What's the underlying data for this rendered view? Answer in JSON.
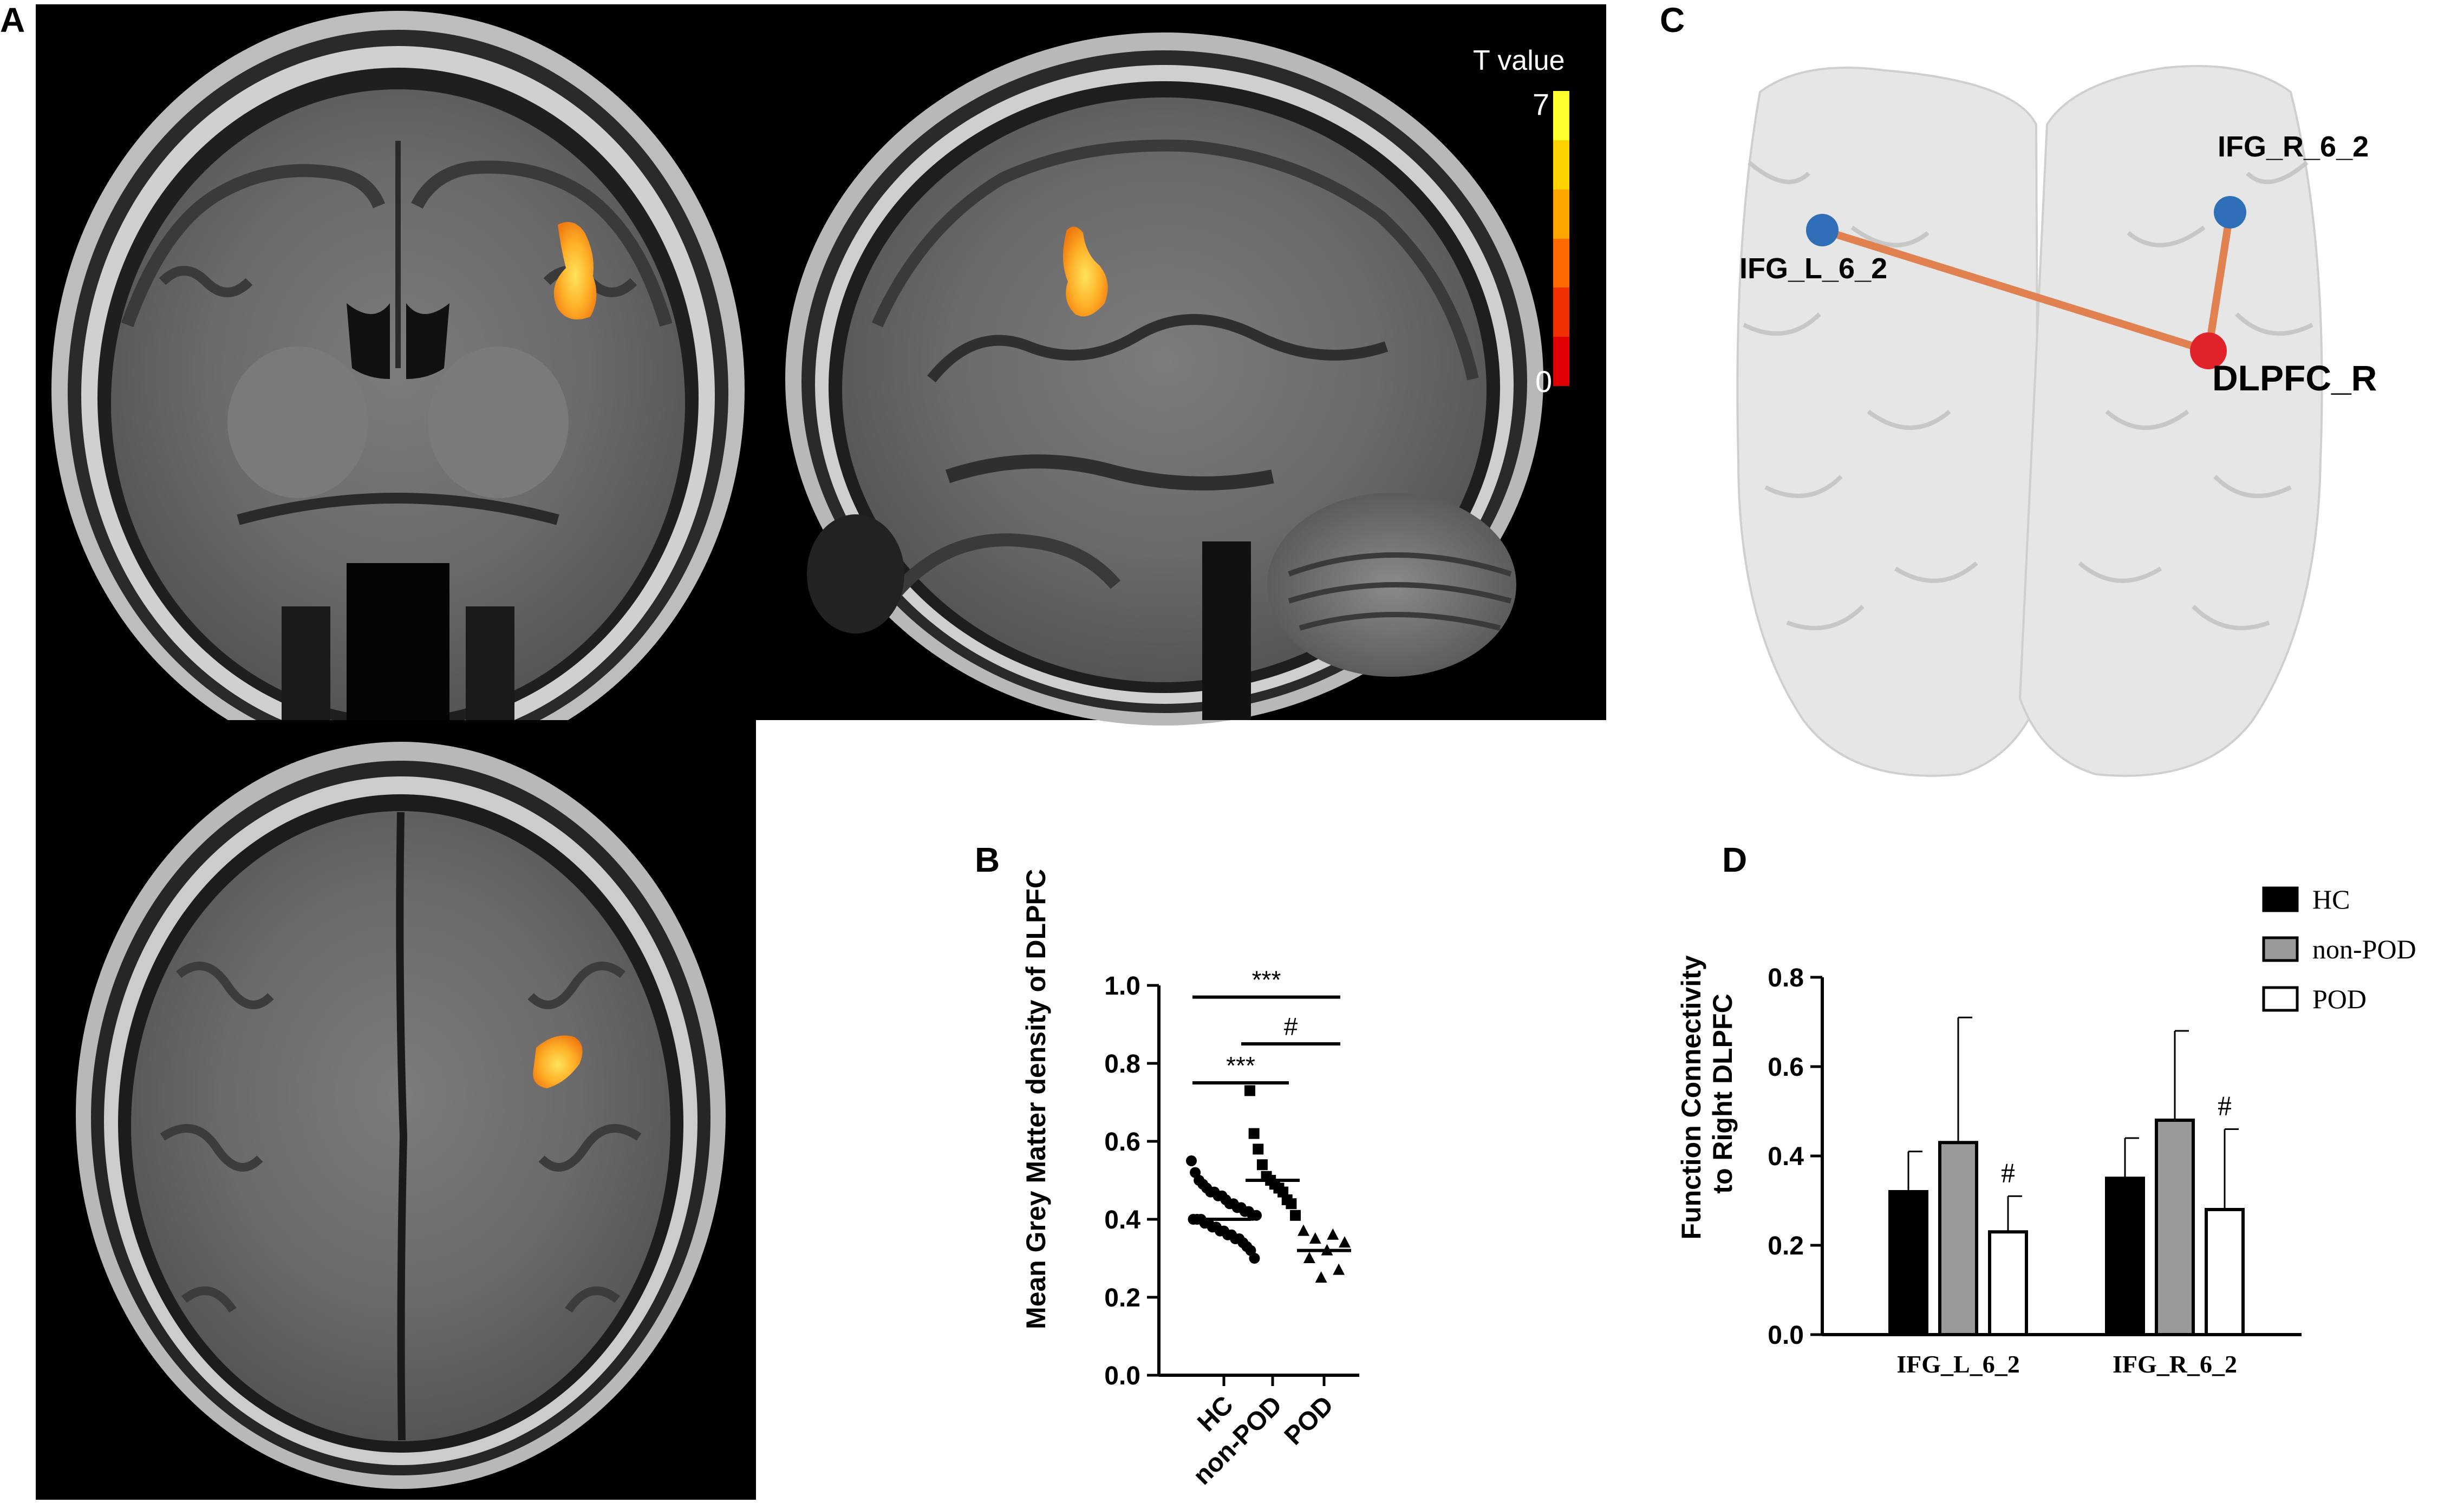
{
  "panels": {
    "a": {
      "letter": "A"
    },
    "b": {
      "letter": "B"
    },
    "c": {
      "letter": "C"
    },
    "d": {
      "letter": "D"
    }
  },
  "colorbar": {
    "title": "T value",
    "max_label": "7",
    "min_label": "0",
    "colors": [
      "#e00000",
      "#f03000",
      "#ff6a00",
      "#ffa500",
      "#ffd200",
      "#ffff30"
    ]
  },
  "connectivity": {
    "nodes": [
      {
        "label": "IFG_L_6_2",
        "color": "#2e6fb7"
      },
      {
        "label": "IFG_R_6_2",
        "color": "#2e6fb7"
      },
      {
        "label": "DLPFC_R",
        "color": "#e0232b"
      }
    ],
    "edge_color": "#e0814f"
  },
  "chart_data": [
    {
      "type": "scatter",
      "panel": "B",
      "title": "",
      "xlabel": "",
      "ylabel": "Mean Grey Matter density of DLPFC",
      "ylim": [
        0.0,
        1.0
      ],
      "yticks": [
        "0.0",
        "0.2",
        "0.4",
        "0.6",
        "0.8",
        "1.0"
      ],
      "categories": [
        "HC",
        "non-POD",
        "POD"
      ],
      "markers": [
        "circle",
        "square",
        "triangle"
      ],
      "means": [
        0.4,
        0.5,
        0.32
      ],
      "series": [
        {
          "values": [
            0.55,
            0.52,
            0.5,
            0.49,
            0.48,
            0.47,
            0.47,
            0.46,
            0.46,
            0.45,
            0.44,
            0.44,
            0.43,
            0.43,
            0.42,
            0.42,
            0.41,
            0.41,
            0.4,
            0.4,
            0.4,
            0.39,
            0.39,
            0.38,
            0.38,
            0.37,
            0.37,
            0.36,
            0.36,
            0.35,
            0.35,
            0.34,
            0.33,
            0.32,
            0.3
          ]
        },
        {
          "values": [
            0.73,
            0.62,
            0.58,
            0.54,
            0.51,
            0.5,
            0.49,
            0.48,
            0.47,
            0.45,
            0.44,
            0.41
          ]
        },
        {
          "values": [
            0.37,
            0.36,
            0.35,
            0.34,
            0.32,
            0.3,
            0.27,
            0.25
          ]
        }
      ],
      "significance": [
        {
          "label": "***",
          "from": "HC",
          "to": "POD",
          "y": 0.97
        },
        {
          "label": "#",
          "from": "non-POD",
          "to": "POD",
          "y": 0.85
        },
        {
          "label": "***",
          "from": "HC",
          "to": "non-POD",
          "y": 0.75
        }
      ]
    },
    {
      "type": "bar",
      "panel": "D",
      "title": "",
      "xlabel": "",
      "ylabel": "Function Connectivity to Right DLPFC",
      "ylim": [
        0.0,
        0.8
      ],
      "yticks": [
        "0.0",
        "0.2",
        "0.4",
        "0.6",
        "0.8"
      ],
      "categories": [
        "IFG_L_6_2",
        "IFG_R_6_2"
      ],
      "legend_position": "top-right",
      "series": [
        {
          "name": "HC",
          "values": [
            0.32,
            0.35
          ],
          "errors": [
            0.09,
            0.09
          ],
          "fill": "#000000"
        },
        {
          "name": "non-POD",
          "values": [
            0.43,
            0.48
          ],
          "errors": [
            0.28,
            0.2
          ],
          "fill": "#999999"
        },
        {
          "name": "POD",
          "values": [
            0.23,
            0.28
          ],
          "errors": [
            0.08,
            0.18
          ],
          "fill": "#ffffff"
        }
      ],
      "annotations": [
        {
          "label": "#",
          "category": "IFG_L_6_2",
          "series": "POD"
        },
        {
          "label": "#",
          "category": "IFG_R_6_2",
          "series": "POD"
        }
      ]
    }
  ]
}
